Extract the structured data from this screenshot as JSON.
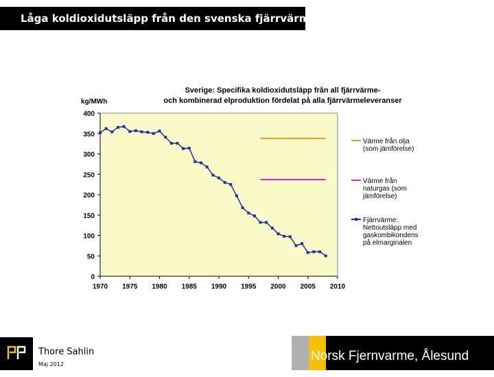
{
  "slide": {
    "title": "Låga koldioxidutsläpp från den svenska fjärrvärmen",
    "author": "Thore Sahlin",
    "date": "Maj 2012",
    "footer": "Norsk Fjernvarme, Ålesund"
  },
  "colors": {
    "plot_bg": "#fafac8",
    "series_blue": "#1f2fa0",
    "oil_line": "#e8a020",
    "gas_line": "#e020c0"
  },
  "chart_data": {
    "type": "line",
    "title_line1": "Sverige: Specifika koldioxidutsläpp från all fjärrvärme-",
    "title_line2": "och kombinerad elproduktion fördelat på alla fjärrvärmeleveranser",
    "ylabel": "kg/MWh",
    "ylim": [
      0,
      400
    ],
    "xlim": [
      1970,
      2010
    ],
    "yticks": [
      0,
      50,
      100,
      150,
      200,
      250,
      300,
      350,
      400
    ],
    "xticks": [
      1970,
      1975,
      1980,
      1985,
      1990,
      1995,
      2000,
      2005,
      2010
    ],
    "series": [
      {
        "name": "Fjärrvärme: Nettoutsläpp med gaskombikondens på elmarginalen",
        "legend_lines": [
          "Fjärrvärme:",
          "Nettoutsläpp med",
          "gaskombikondens",
          "på elmarginalen"
        ],
        "x": [
          1970,
          1971,
          1972,
          1973,
          1974,
          1975,
          1976,
          1977,
          1978,
          1979,
          1980,
          1981,
          1982,
          1983,
          1984,
          1985,
          1986,
          1987,
          1988,
          1989,
          1990,
          1991,
          1992,
          1993,
          1994,
          1995,
          1996,
          1997,
          1998,
          1999,
          2000,
          2001,
          2002,
          2003,
          2004,
          2005,
          2006,
          2007,
          2008
        ],
        "values": [
          352,
          362,
          354,
          365,
          367,
          355,
          357,
          354,
          353,
          350,
          356,
          341,
          326,
          326,
          313,
          314,
          281,
          278,
          268,
          248,
          241,
          230,
          225,
          197,
          168,
          155,
          148,
          132,
          132,
          118,
          104,
          98,
          97,
          75,
          80,
          58,
          60,
          60,
          50
        ]
      },
      {
        "name": "Värme från olja (som jämförelse)",
        "legend_lines": [
          "Värme från olja",
          "(som jämförelse)"
        ],
        "x": [
          1997,
          2008
        ],
        "values": [
          338,
          338
        ]
      },
      {
        "name": "Värme från naturgas (som jämförelse)",
        "legend_lines": [
          "Värme från",
          "naturgas (som",
          "jämförelse)"
        ],
        "x": [
          1997,
          2008
        ],
        "values": [
          237,
          237
        ]
      }
    ]
  }
}
